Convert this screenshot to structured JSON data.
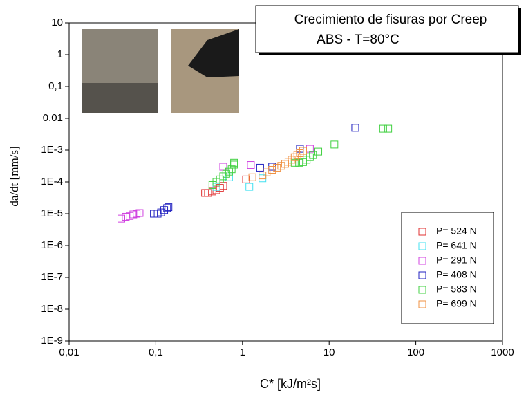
{
  "chart_data": {
    "type": "scatter",
    "title": "Crecimiento de fisuras por Creep",
    "subtitle": "ABS - T=80°C",
    "x_label": "C* [kJ/m²s]",
    "y_label": "da/dt [mm/s]",
    "log_x": true,
    "log_y": true,
    "xlim": [
      0.01,
      1000
    ],
    "ylim": [
      1e-09,
      10
    ],
    "xticks": [
      {
        "value": 0.01,
        "label": "0,01"
      },
      {
        "value": 0.1,
        "label": "0,1"
      },
      1,
      10,
      100,
      1000
    ],
    "yticks": [
      {
        "value": 1e-09,
        "label": "1E-9"
      },
      {
        "value": 1e-08,
        "label": "1E-8"
      },
      {
        "value": 1e-07,
        "label": "1E-7"
      },
      {
        "value": 1e-06,
        "label": "1E-6"
      },
      {
        "value": 1e-05,
        "label": "1E-5"
      },
      {
        "value": 0.0001,
        "label": "1E-4"
      },
      {
        "value": 0.001,
        "label": "1E-3"
      },
      {
        "value": 0.01,
        "label": "0,01"
      },
      {
        "value": 0.1,
        "label": "0,1"
      },
      1,
      10
    ],
    "legend": "bottom-right",
    "series": [
      {
        "name": "P= 524 N",
        "color": "#e03030",
        "x": [
          0.37,
          0.4,
          0.45,
          0.5,
          0.55,
          0.6,
          1.1
        ],
        "values": [
          4.5e-05,
          4.5e-05,
          5e-05,
          5.5e-05,
          6.5e-05,
          7.5e-05,
          0.00012
        ]
      },
      {
        "name": "P= 641 N",
        "color": "#40e0f0",
        "x": [
          0.5,
          0.7,
          1.2,
          1.7
        ],
        "values": [
          7e-05,
          0.00014,
          7e-05,
          0.00013
        ]
      },
      {
        "name": "P= 291 N",
        "color": "#d040e0",
        "x": [
          0.04,
          0.045,
          0.05,
          0.055,
          0.06,
          0.065,
          0.6,
          1.25,
          6
        ],
        "values": [
          7e-06,
          8e-06,
          8.5e-06,
          9.5e-06,
          1e-05,
          1.05e-05,
          0.0003,
          0.00034,
          0.0011
        ]
      },
      {
        "name": "P= 408 N",
        "color": "#2020c0",
        "x": [
          0.095,
          0.105,
          0.115,
          0.125,
          0.135,
          0.14,
          1.6,
          2.2,
          4.6,
          20
        ],
        "values": [
          1e-05,
          1e-05,
          1.1e-05,
          1.3e-05,
          1.5e-05,
          1.6e-05,
          0.00028,
          0.0003,
          0.0011,
          0.005
        ]
      },
      {
        "name": "P= 583 N",
        "color": "#40d040",
        "x": [
          0.45,
          0.5,
          0.55,
          0.6,
          0.65,
          0.7,
          0.75,
          0.8,
          0.8,
          4,
          4.5,
          5,
          5.5,
          6,
          6.5,
          7.5,
          11.5,
          42,
          48
        ],
        "values": [
          8e-05,
          0.0001,
          0.00012,
          0.00015,
          0.00018,
          0.00021,
          0.00025,
          0.00035,
          0.0004,
          0.0004,
          0.0004,
          0.00042,
          0.0005,
          0.0006,
          0.0007,
          0.0009,
          0.0015,
          0.0047,
          0.0047
        ]
      },
      {
        "name": "P= 699 N",
        "color": "#f09040",
        "x": [
          1.3,
          1.7,
          1.9,
          2.2,
          2.5,
          2.8,
          3.1,
          3.4,
          3.7,
          4,
          4.3,
          4.6,
          5
        ],
        "values": [
          0.00014,
          0.00016,
          0.0002,
          0.00024,
          0.00028,
          0.00032,
          0.00037,
          0.00043,
          0.0005,
          0.0006,
          0.0007,
          0.0008,
          0.00095
        ]
      }
    ]
  }
}
